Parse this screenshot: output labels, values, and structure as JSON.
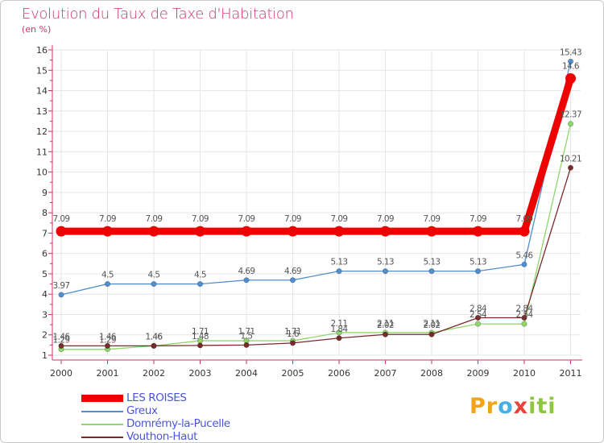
{
  "colors": {
    "title": "#cc3366",
    "axis": "#cc3366",
    "grid": "#e6e6e6",
    "value_label": "#555555"
  },
  "chart_data": {
    "type": "line",
    "title": "Evolution du Taux de Taxe d'Habitation",
    "subtitle": "(en %)",
    "xlabel": "",
    "ylabel": "",
    "categories": [
      "2000",
      "2001",
      "2002",
      "2003",
      "2004",
      "2005",
      "2006",
      "2007",
      "2008",
      "2009",
      "2010",
      "2011"
    ],
    "ylim": [
      1,
      16
    ],
    "yticks": [
      1,
      2,
      3,
      4,
      5,
      6,
      7,
      8,
      9,
      10,
      11,
      12,
      13,
      14,
      15,
      16
    ],
    "grid": true,
    "series": [
      {
        "name": "LES ROISES",
        "color": "#ee0000",
        "emphasis": true,
        "values": [
          7.09,
          7.09,
          7.09,
          7.09,
          7.09,
          7.09,
          7.09,
          7.09,
          7.09,
          7.09,
          7.09,
          14.6
        ],
        "labels": [
          "7.09",
          "7.09",
          "7.09",
          "7.09",
          "7.09",
          "7.09",
          "7.09",
          "7.09",
          "7.09",
          "7.09",
          "7.09",
          "14.6"
        ]
      },
      {
        "name": "Greux",
        "color": "#4f8fd0",
        "emphasis": false,
        "values": [
          3.97,
          4.5,
          4.5,
          4.5,
          4.69,
          4.69,
          5.13,
          5.13,
          5.13,
          5.13,
          5.46,
          15.43
        ],
        "labels": [
          "3.97",
          "4.5",
          "4.5",
          "4.5",
          "4.69",
          "4.69",
          "5.13",
          "5.13",
          "5.13",
          "5.13",
          "5.46",
          "15.43"
        ]
      },
      {
        "name": "Domrémy-la-Pucelle",
        "color": "#8fd66b",
        "emphasis": false,
        "values": [
          1.29,
          1.29,
          1.46,
          1.71,
          1.71,
          1.71,
          2.11,
          2.11,
          2.11,
          2.54,
          2.54,
          12.37
        ],
        "labels": [
          "1.29",
          "1.29",
          "1.46",
          "1.71",
          "1.71",
          "1.71",
          "2.11",
          "2.11",
          "2.11",
          "2.54",
          "2.54",
          "12.37"
        ]
      },
      {
        "name": "Vouthon-Haut",
        "color": "#7a2a2a",
        "emphasis": false,
        "values": [
          1.46,
          1.46,
          1.46,
          1.48,
          1.5,
          1.6,
          1.84,
          2.02,
          2.02,
          2.84,
          2.84,
          10.21
        ],
        "labels": [
          "1.46",
          "1.46",
          "1.46",
          "1.48",
          "1.5",
          "1.6",
          "1.84",
          "2.02",
          "2.02",
          "2.84",
          "2.84",
          "10.21"
        ]
      }
    ]
  },
  "legend": {
    "items": [
      {
        "label": "LES ROISES",
        "color": "#ee0000"
      },
      {
        "label": "Greux",
        "color": "#4f8fd0"
      },
      {
        "label": "Domrémy-la-Pucelle",
        "color": "#8fd66b"
      },
      {
        "label": "Vouthon-Haut",
        "color": "#7a2a2a"
      }
    ]
  },
  "logo": {
    "part1": "Pr",
    "part2": "o",
    "part3": "x",
    "part4": "iti"
  }
}
